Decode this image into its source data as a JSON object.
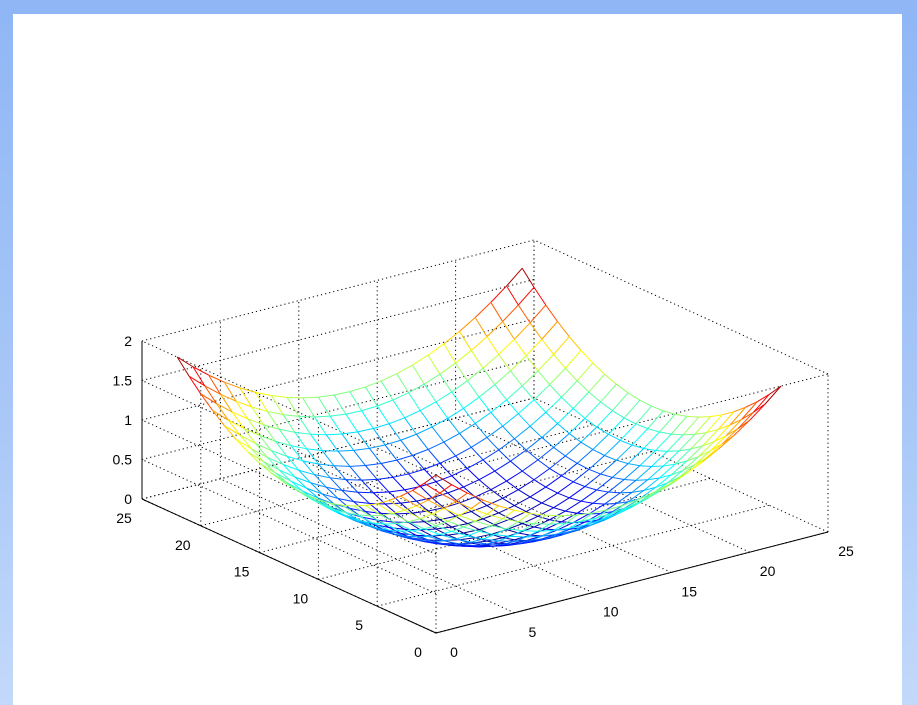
{
  "chart_data": {
    "type": "surface-mesh",
    "function": "z = ((x-11)/11)^2 + ((y-11)/11)^2",
    "x": [
      0,
      1,
      2,
      3,
      4,
      5,
      6,
      7,
      8,
      9,
      10,
      11,
      12,
      13,
      14,
      15,
      16,
      17,
      18,
      19,
      20,
      21,
      22
    ],
    "y": [
      0,
      1,
      2,
      3,
      4,
      5,
      6,
      7,
      8,
      9,
      10,
      11,
      12,
      13,
      14,
      15,
      16,
      17,
      18,
      19,
      20,
      21,
      22
    ],
    "x_range": [
      0,
      25
    ],
    "y_range": [
      0,
      25
    ],
    "z_range": [
      0,
      2
    ],
    "x_ticks": [
      "0",
      "5",
      "10",
      "15",
      "20",
      "25"
    ],
    "y_ticks": [
      "0",
      "5",
      "10",
      "15",
      "20",
      "25"
    ],
    "z_ticks": [
      "0",
      "0.5",
      "1",
      "1.5",
      "2"
    ],
    "grid": true,
    "box": "dotted",
    "colormap": "jet",
    "colormap_stops": [
      "#00008f",
      "#0000ff",
      "#0080ff",
      "#00ffff",
      "#80ff80",
      "#ffff00",
      "#ff8000",
      "#ff0000",
      "#800000"
    ]
  }
}
